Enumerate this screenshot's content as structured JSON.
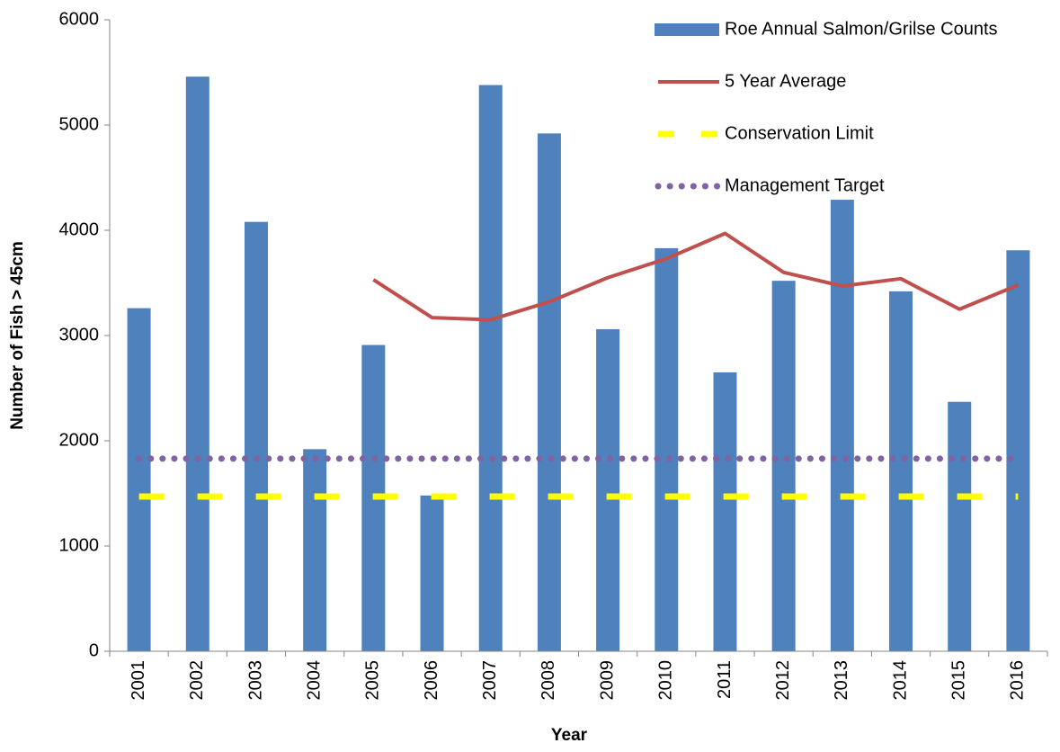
{
  "chart_data": {
    "type": "bar",
    "x_label": "Year",
    "y_label": "Number of Fish > 45cm",
    "categories": [
      "2001",
      "2002",
      "2003",
      "2004",
      "2005",
      "2006",
      "2007",
      "2008",
      "2009",
      "2010",
      "2011",
      "2012",
      "2013",
      "2014",
      "2015",
      "2016"
    ],
    "series": [
      {
        "name": "Roe Annual Salmon/Grilse Counts",
        "type": "bar",
        "color": "#4f81bd",
        "values": [
          3260,
          5460,
          4080,
          1920,
          2910,
          1480,
          5380,
          4920,
          3060,
          3830,
          2650,
          3520,
          4290,
          3420,
          2370,
          3810
        ]
      },
      {
        "name": "5 Year Average",
        "type": "line",
        "style": "solid",
        "color": "#c0504d",
        "values": [
          null,
          null,
          null,
          null,
          3530,
          3170,
          3150,
          3320,
          3550,
          3730,
          3970,
          3600,
          3470,
          3540,
          3250,
          3480
        ]
      },
      {
        "name": "Conservation Limit",
        "type": "line",
        "style": "dashed",
        "color": "#ffff00",
        "values": [
          1470,
          1470,
          1470,
          1470,
          1470,
          1470,
          1470,
          1470,
          1470,
          1470,
          1470,
          1470,
          1470,
          1470,
          1470,
          1470
        ]
      },
      {
        "name": "Management Target",
        "type": "line",
        "style": "dotted",
        "color": "#8064a2",
        "values": [
          1830,
          1830,
          1830,
          1830,
          1830,
          1830,
          1830,
          1830,
          1830,
          1830,
          1830,
          1830,
          1830,
          1830,
          1830,
          1830
        ]
      }
    ],
    "ylim": [
      0,
      6000
    ],
    "yticks": [
      0,
      1000,
      2000,
      3000,
      4000,
      5000,
      6000
    ],
    "grid": false,
    "legend": "top-right"
  }
}
